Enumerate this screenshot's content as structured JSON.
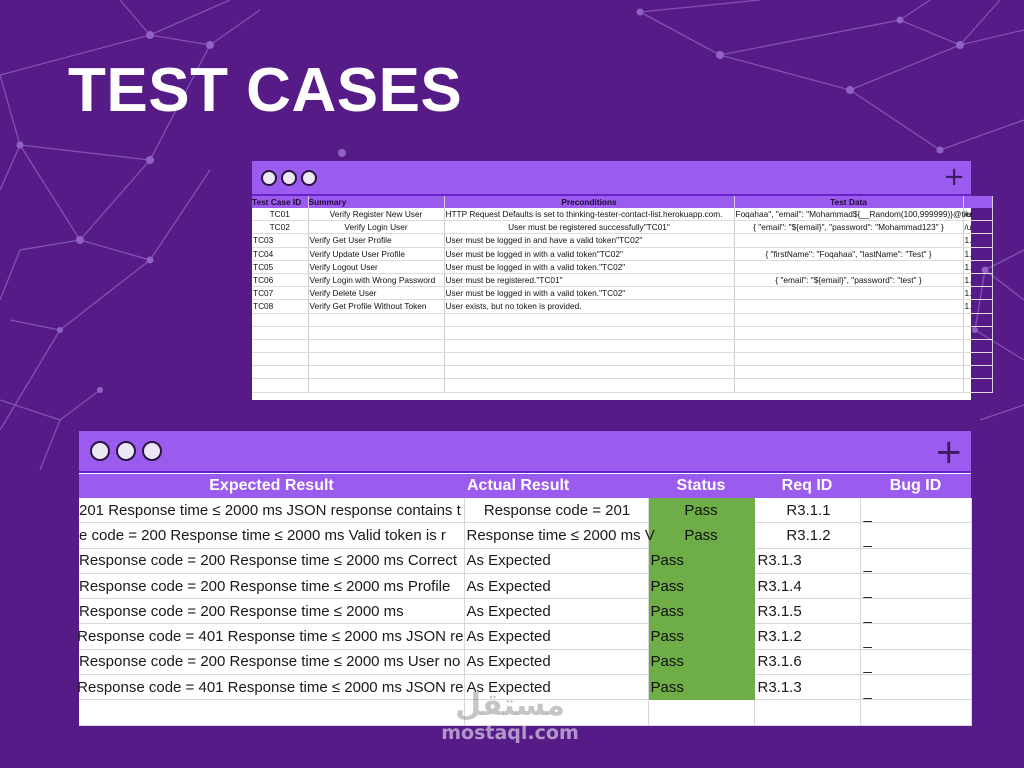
{
  "slide": {
    "title": "TEST CASES",
    "background_color": "#571b88",
    "accent_color": "#9b5bef",
    "pass_color": "#6fad46"
  },
  "window1": {
    "plus_icon": "+",
    "headers": [
      "Test Case ID",
      "Summary",
      "Preconditions",
      "Test Data",
      ""
    ],
    "rows": [
      [
        "TC01",
        "Verify Register New User",
        "HTTP Request Defaults is set to thinking-tester-contact-list.herokuapp.com.",
        "Foqahaa\",  \"email\": \"Mohammad${__Random(100,999999)}@tier",
        "/u"
      ],
      [
        "TC02",
        "Verify Login User",
        "User must be registered successfully\"TC01\"",
        "{  \"email\": \"${email}\",  \"password\": \"Mohammad123\" }",
        "/u"
      ],
      [
        "TC03",
        "Verify Get User Profile",
        "User must be logged in and have a valid token\"TC02\"",
        "",
        "1."
      ],
      [
        "TC04",
        "Verify Update User Profile",
        "User must be logged in with a valid token\"TC02\"",
        "{  \"firstName\": \"Foqahaa\",  \"lastName\": \"Test\" }",
        "1."
      ],
      [
        "TC05",
        "Verify Logout User",
        "User must be logged in with a valid token.\"TC02\"",
        "",
        "1."
      ],
      [
        "TC06",
        "Verify Login with Wrong Password",
        "User must be registered.\"TC01\"",
        "{  \"email\": \"${email}\",  \"password\": \"test\" }",
        "1."
      ],
      [
        "TC07",
        "Verify Delete User",
        "User must be logged in with a valid token.\"TC02\"",
        "",
        "1."
      ],
      [
        "TC08",
        "Verify Get Profile Without Token",
        "User exists, but no token is provided.",
        "",
        "1."
      ],
      [
        "",
        "",
        "",
        "",
        ""
      ],
      [
        "",
        "",
        "",
        "",
        ""
      ],
      [
        "",
        "",
        "",
        "",
        ""
      ],
      [
        "",
        "",
        "",
        "",
        ""
      ],
      [
        "",
        "",
        "",
        "",
        ""
      ],
      [
        "",
        "",
        "",
        "",
        ""
      ]
    ]
  },
  "window2": {
    "plus_icon": "+",
    "headers": [
      "Expected Result",
      "Actual Result",
      "Status",
      "Req ID",
      "Bug ID"
    ],
    "rows": [
      [
        "201 Response time ≤ 2000 ms JSON response contains t",
        "Response code = 201",
        "Pass",
        "R3.1.1",
        "_"
      ],
      [
        "e code = 200  Response time ≤ 2000 ms  Valid token is r",
        "Response time ≤ 2000 ms  V",
        "Pass",
        "R3.1.2",
        "_"
      ],
      [
        "Response code = 200  Response time ≤ 2000 ms Correct",
        "As Expected",
        "Pass",
        "R3.1.3",
        "_"
      ],
      [
        "Response code = 200  Response time ≤ 2000 ms  Profile",
        "As Expected",
        "Pass",
        "R3.1.4",
        "_"
      ],
      [
        "Response code = 200 Response time ≤ 2000 ms",
        "As Expected",
        "Pass",
        "R3.1.5",
        "_"
      ],
      [
        "Response code = 401 Response time ≤ 2000 ms JSON re",
        "As Expected",
        "Pass",
        "R3.1.2",
        "_"
      ],
      [
        "Response code = 200 Response time ≤ 2000 ms User no",
        "As Expected",
        "Pass",
        "R3.1.6",
        "_"
      ],
      [
        "Response code = 401 Response time ≤ 2000 ms JSON re",
        "As Expected",
        "Pass",
        "R3.1.3",
        "_"
      ],
      [
        "",
        "",
        "",
        "",
        ""
      ]
    ]
  },
  "watermark": {
    "logo": "مستقل",
    "url": "mostaql.com"
  }
}
